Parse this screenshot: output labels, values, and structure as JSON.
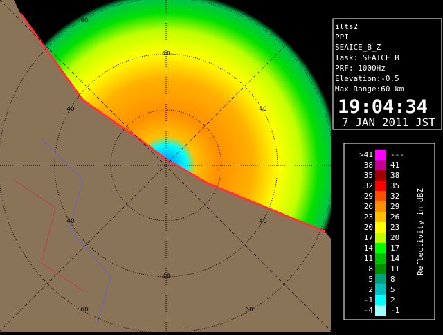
{
  "info": {
    "lines": [
      "ilts2",
      "PPI",
      "SEAICE_B_Z",
      "Task: SEAICE_B",
      "PRF: 1000Hz",
      "Elevation:-0.5",
      "Max Range:60 km"
    ],
    "time": "19:04:34",
    "date": "7 JAN 2011 JST"
  },
  "legend": {
    "title": "Reflectivity in dBZ",
    "rows": [
      {
        "low": ">41",
        "high": "---",
        "color": "#ff00ff"
      },
      {
        "low": "38",
        "high": "41",
        "color": "#c00090"
      },
      {
        "low": "35",
        "high": "38",
        "color": "#a00000"
      },
      {
        "low": "32",
        "high": "35",
        "color": "#ff0000"
      },
      {
        "low": "29",
        "high": "32",
        "color": "#ff5000"
      },
      {
        "low": "26",
        "high": "29",
        "color": "#ff9000"
      },
      {
        "low": "23",
        "high": "26",
        "color": "#ffc000"
      },
      {
        "low": "20",
        "high": "23",
        "color": "#ffff00"
      },
      {
        "low": "17",
        "high": "20",
        "color": "#c0ff00"
      },
      {
        "low": "14",
        "high": "17",
        "color": "#00ff00"
      },
      {
        "low": "11",
        "high": "14",
        "color": "#00c000"
      },
      {
        "low": "8",
        "high": "11",
        "color": "#009000"
      },
      {
        "low": "5",
        "high": "8",
        "color": "#00a080"
      },
      {
        "low": "2",
        "high": "5",
        "color": "#00c0c0"
      },
      {
        "low": "-1",
        "high": "2",
        "color": "#00ffff"
      },
      {
        "low": "-4",
        "high": "-1",
        "color": "#a0ffff"
      }
    ]
  },
  "range_labels": [
    "60",
    "40",
    "40",
    "40",
    "40",
    "40",
    "40",
    "60",
    "60"
  ]
}
